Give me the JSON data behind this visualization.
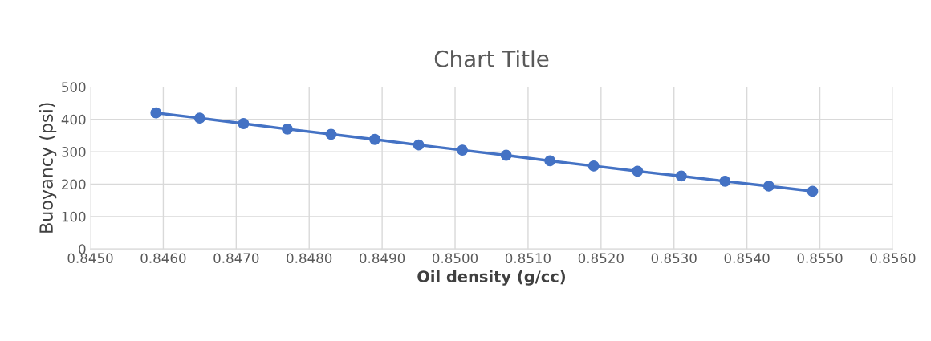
{
  "chart_data": {
    "type": "line",
    "title": "Chart Title",
    "xlabel": "Oil density (g/cc)",
    "ylabel": "Buoyancy (psi)",
    "x": [
      0.8459,
      0.8465,
      0.8471,
      0.8477,
      0.8483,
      0.8489,
      0.8495,
      0.8501,
      0.8507,
      0.8513,
      0.8519,
      0.8525,
      0.8531,
      0.8537,
      0.8543,
      0.8549
    ],
    "series": [
      {
        "color": "#4472c4",
        "values": [
          420,
          404,
          387,
          370,
          354,
          338,
          321,
          305,
          289,
          272,
          256,
          240,
          225,
          209,
          194,
          178
        ]
      }
    ],
    "xlim": [
      0.845,
      0.856
    ],
    "ylim": [
      0,
      500
    ],
    "xticks": [
      {
        "value": 0.845,
        "label": "0.8450"
      },
      {
        "value": 0.846,
        "label": "0.8460"
      },
      {
        "value": 0.847,
        "label": "0.8470"
      },
      {
        "value": 0.848,
        "label": "0.8480"
      },
      {
        "value": 0.849,
        "label": "0.8490"
      },
      {
        "value": 0.85,
        "label": "0.8500"
      },
      {
        "value": 0.851,
        "label": "0.8510"
      },
      {
        "value": 0.852,
        "label": "0.8520"
      },
      {
        "value": 0.853,
        "label": "0.8530"
      },
      {
        "value": 0.854,
        "label": "0.8540"
      },
      {
        "value": 0.855,
        "label": "0.8550"
      },
      {
        "value": 0.856,
        "label": "0.8560"
      }
    ],
    "yticks": [
      0,
      100,
      200,
      300,
      400,
      500
    ],
    "grid": true,
    "marker": "circle",
    "line_style": "solid",
    "legend": false
  }
}
